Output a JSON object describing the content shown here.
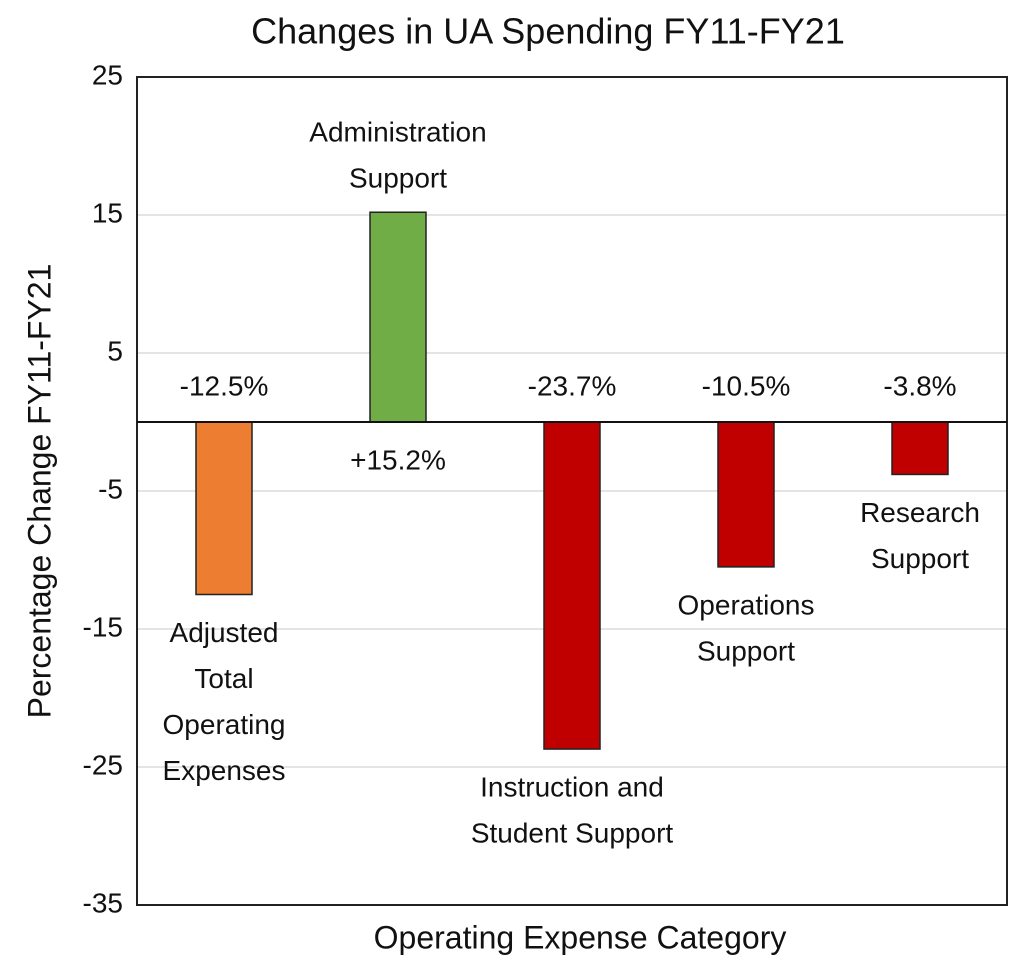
{
  "chart_data": {
    "type": "bar",
    "title": "Changes in UA Spending FY11-FY21",
    "x_label": "Operating Expense Category",
    "y_label": "Percentage Change FY11-FY21",
    "categories": [
      [
        "Adjusted",
        "Total",
        "Operating",
        "Expenses"
      ],
      [
        "Administration",
        "Support"
      ],
      [
        "Instruction and",
        "Student Support"
      ],
      [
        "Operations",
        "Support"
      ],
      [
        "Research",
        "Support"
      ]
    ],
    "values": [
      -12.5,
      15.2,
      -23.7,
      -10.5,
      -3.8
    ],
    "value_labels": [
      "-12.5%",
      "+15.2%",
      "-23.7%",
      "-10.5%",
      "-3.8%"
    ],
    "colors": [
      "#ed7d31",
      "#70ad47",
      "#c00000",
      "#c00000",
      "#c00000"
    ],
    "ylim": [
      -35,
      25
    ],
    "yticks": [
      -35,
      -25,
      -15,
      -5,
      5,
      15,
      25
    ],
    "grid": true
  }
}
